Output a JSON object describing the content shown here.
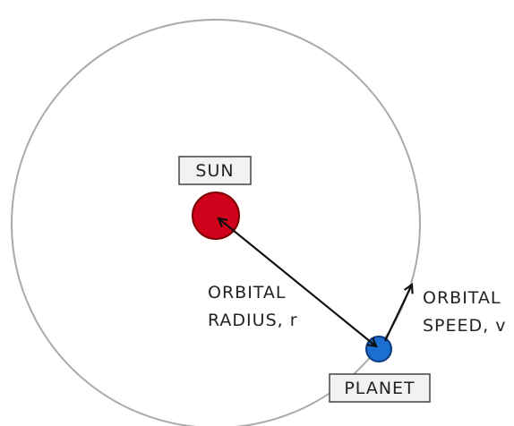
{
  "labels": {
    "sun": "SUN",
    "planet": "PLANET",
    "radius": [
      "ORBITAL",
      "RADIUS, r"
    ],
    "speed": [
      "ORBITAL",
      "SPEED, v"
    ]
  }
}
